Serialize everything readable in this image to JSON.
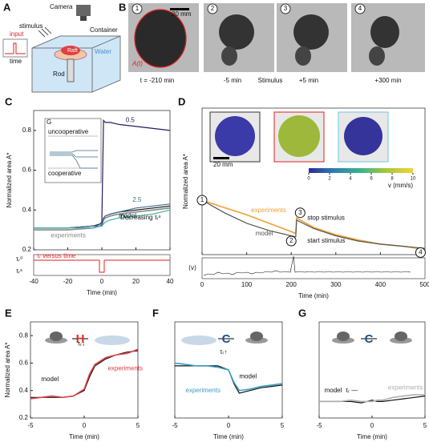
{
  "panel_a": {
    "label": "A",
    "camera": "Camera",
    "stimulus": "stimulus",
    "input": "input",
    "time": "time",
    "container": "Container",
    "raft": "Raft",
    "water": "Water",
    "rod": "Rod"
  },
  "panel_b": {
    "label": "B",
    "scale_bar": "20 mm",
    "contour": "A(t)",
    "stimulus_caption": "Stimulus",
    "frames": [
      {
        "number": "1",
        "caption": "t = -210 min"
      },
      {
        "number": "2",
        "caption": "-5 min"
      },
      {
        "number": "3",
        "caption": "+5 min"
      },
      {
        "number": "4",
        "caption": "+300 min"
      }
    ]
  },
  "chart_data": [
    {
      "type": "line",
      "panel_label": "C",
      "x_label": "Time (min)",
      "y_label": "Normalized area A*",
      "x": [
        -40,
        -20,
        -5,
        -1,
        0,
        1,
        2,
        5,
        10,
        20,
        30,
        40
      ],
      "xlim": [
        -40,
        40
      ],
      "xticks": [
        -40,
        -20,
        0,
        20,
        40
      ],
      "ylim": [
        0.2,
        0.9
      ],
      "yticks": [
        0.2,
        0.4,
        0.6,
        0.8
      ],
      "series": [
        {
          "name": "experiments",
          "color": "#8a8a8a",
          "values": [
            0.3,
            0.3,
            0.31,
            0.32,
            0.32,
            0.35,
            0.36,
            0.37,
            0.38,
            0.39,
            0.4,
            0.41
          ]
        },
        {
          "name": "model",
          "color": "#111111",
          "values": [
            0.31,
            0.31,
            0.32,
            0.32,
            0.33,
            0.36,
            0.37,
            0.38,
            0.39,
            0.4,
            0.41,
            0.42
          ]
        },
        {
          "name": "0.5",
          "color": "#2b1b5e",
          "values": [
            0.31,
            0.31,
            0.32,
            0.33,
            0.34,
            0.85,
            0.84,
            0.84,
            0.83,
            0.82,
            0.81,
            0.8
          ]
        },
        {
          "name": "2.5",
          "color": "#3f6f8f",
          "values": [
            0.31,
            0.31,
            0.32,
            0.32,
            0.33,
            0.36,
            0.37,
            0.38,
            0.39,
            0.41,
            0.42,
            0.43
          ]
        },
        {
          "name": "5",
          "color": "#3bb3a3",
          "values": [
            0.31,
            0.31,
            0.31,
            0.32,
            0.32,
            0.33,
            0.34,
            0.35,
            0.36,
            0.37,
            0.38,
            0.4
          ]
        }
      ],
      "annotations": {
        "decreasing": "Decreasing τᵣˢ",
        "inset_title": "G",
        "uncooperative": "uncooperative",
        "cooperative": "cooperative",
        "tau_0": "τᵣ⁰",
        "tau_s": "τᵣˢ",
        "tau_caption": "τᵣ versus time"
      }
    },
    {
      "type": "line",
      "panel_label": "D",
      "x_label": "Time (min)",
      "y_label": "Normalized area A*",
      "x": [
        0,
        50,
        100,
        150,
        200,
        210,
        212,
        250,
        300,
        350,
        400,
        450,
        500
      ],
      "xlim": [
        0,
        500
      ],
      "xticks": [
        0,
        100,
        200,
        300,
        400,
        500
      ],
      "ylim": [
        0.2,
        1.6
      ],
      "series": [
        {
          "name": "experiments",
          "color": "#f0a030",
          "values": [
            0.72,
            0.65,
            0.58,
            0.5,
            0.42,
            0.4,
            0.55,
            0.46,
            0.39,
            0.34,
            0.3,
            0.28,
            0.25
          ]
        },
        {
          "name": "model",
          "color": "#555555",
          "values": [
            0.72,
            0.6,
            0.5,
            0.43,
            0.38,
            0.37,
            0.53,
            0.45,
            0.38,
            0.33,
            0.3,
            0.28,
            0.26
          ]
        }
      ],
      "colorbar": {
        "label": "v (mm/s)",
        "lim": [
          0,
          10
        ],
        "ticks": [
          0,
          2,
          4,
          6,
          8,
          10
        ]
      },
      "annotations": {
        "stop": "stop stimulus",
        "start": "start stimulus",
        "m1": "1",
        "m2": "2",
        "m3": "3",
        "m4": "4",
        "scale_bar": "20 mm",
        "strip_label": "⟨v⟩"
      }
    },
    {
      "type": "line",
      "panel_label": "E",
      "x_label": "Time (min)",
      "y_label": "Normalized area A*",
      "x": [
        -5,
        -4,
        -3,
        -2,
        -1,
        0,
        0.5,
        1,
        2,
        3,
        4,
        5
      ],
      "xlim": [
        -5,
        5
      ],
      "xticks": [
        -5,
        0,
        5
      ],
      "ylim": [
        0.2,
        0.9
      ],
      "yticks": [
        0.2,
        0.4,
        0.6,
        0.8
      ],
      "series": [
        {
          "name": "model",
          "color": "#111111",
          "values": [
            0.35,
            0.35,
            0.35,
            0.35,
            0.36,
            0.4,
            0.5,
            0.58,
            0.63,
            0.66,
            0.68,
            0.69
          ]
        },
        {
          "name": "experiments",
          "color": "#e0404a",
          "values": [
            0.34,
            0.35,
            0.36,
            0.35,
            0.36,
            0.41,
            0.52,
            0.59,
            0.64,
            0.66,
            0.67,
            0.7
          ]
        }
      ],
      "annotations": {
        "symbol": "H",
        "tau": "τᵣ↓"
      }
    },
    {
      "type": "line",
      "panel_label": "F",
      "x_label": "Time (min)",
      "x": [
        -5,
        -4,
        -3,
        -2,
        -1,
        0,
        0.5,
        1,
        2,
        3,
        4,
        5
      ],
      "xlim": [
        -5,
        5
      ],
      "xticks": [
        -5,
        0,
        5
      ],
      "ylim": [
        0.2,
        0.9
      ],
      "series": [
        {
          "name": "model",
          "color": "#111111",
          "values": [
            0.58,
            0.58,
            0.58,
            0.58,
            0.58,
            0.55,
            0.45,
            0.38,
            0.4,
            0.42,
            0.43,
            0.44
          ]
        },
        {
          "name": "experiments",
          "color": "#3a9ec4",
          "values": [
            0.6,
            0.59,
            0.58,
            0.58,
            0.57,
            0.55,
            0.46,
            0.4,
            0.41,
            0.43,
            0.44,
            0.45
          ]
        }
      ],
      "annotations": {
        "symbol": "C",
        "tau": "τᵣ↑"
      }
    },
    {
      "type": "line",
      "panel_label": "G",
      "x_label": "Time (min)",
      "x": [
        -5,
        -4,
        -3,
        -2,
        -1,
        0,
        0.5,
        1,
        2,
        3,
        4,
        5
      ],
      "xlim": [
        -5,
        5
      ],
      "xticks": [
        -5,
        0,
        5
      ],
      "ylim": [
        0.2,
        0.9
      ],
      "series": [
        {
          "name": "model",
          "color": "#111111",
          "values": [
            0.32,
            0.32,
            0.32,
            0.32,
            0.31,
            0.33,
            0.32,
            0.32,
            0.33,
            0.34,
            0.35,
            0.36
          ]
        },
        {
          "name": "experiments",
          "color": "#b0b0b0",
          "values": [
            0.32,
            0.32,
            0.32,
            0.33,
            0.32,
            0.32,
            0.33,
            0.33,
            0.35,
            0.36,
            0.37,
            0.37
          ]
        }
      ],
      "annotations": {
        "symbol": "C",
        "tau": "τᵣ —"
      }
    }
  ]
}
